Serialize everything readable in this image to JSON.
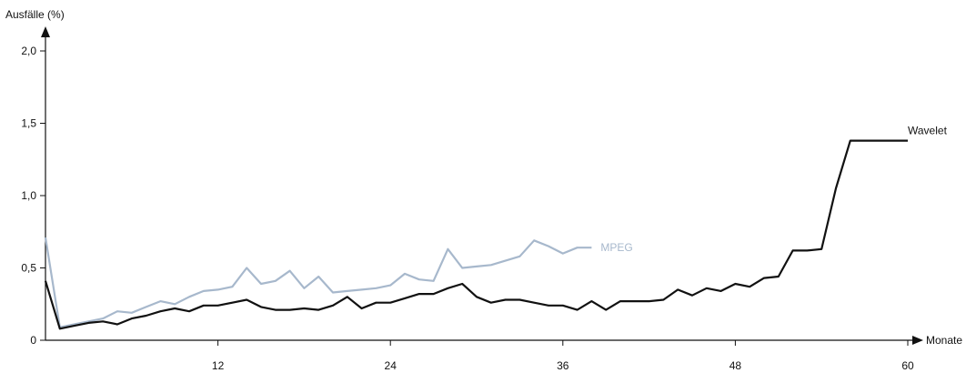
{
  "chart_data": {
    "type": "line",
    "ylabel": "Ausfälle (%)",
    "xlabel": "Monate",
    "xlim": [
      0,
      60
    ],
    "ylim": [
      0,
      2.0
    ],
    "x_ticks": [
      12,
      24,
      36,
      48,
      60
    ],
    "x_tick_labels": [
      "12",
      "24",
      "36",
      "48",
      "60"
    ],
    "y_ticks": [
      0,
      0.5,
      1.0,
      1.5,
      2.0
    ],
    "y_tick_labels": [
      "0",
      "0,5",
      "1,0",
      "1,5",
      "2,0"
    ],
    "grid": false,
    "series": [
      {
        "name": "MPEG",
        "color": "#a7b8cc",
        "label_position": "end",
        "x": [
          0,
          1,
          2,
          3,
          4,
          5,
          6,
          7,
          8,
          9,
          10,
          11,
          12,
          13,
          14,
          15,
          16,
          17,
          18,
          19,
          20,
          21,
          22,
          23,
          24,
          25,
          26,
          27,
          28,
          29,
          30,
          31,
          32,
          33,
          34,
          35,
          36,
          37,
          38
        ],
        "values": [
          0.71,
          0.09,
          0.11,
          0.13,
          0.15,
          0.2,
          0.19,
          0.23,
          0.27,
          0.25,
          0.3,
          0.34,
          0.35,
          0.37,
          0.5,
          0.39,
          0.41,
          0.48,
          0.36,
          0.44,
          0.33,
          0.34,
          0.35,
          0.36,
          0.38,
          0.46,
          0.42,
          0.41,
          0.63,
          0.5,
          0.51,
          0.52,
          0.55,
          0.58,
          0.69,
          0.65,
          0.6,
          0.64,
          0.64
        ]
      },
      {
        "name": "Wavelet",
        "color": "#111111",
        "label_position": "end",
        "x": [
          0,
          1,
          2,
          3,
          4,
          5,
          6,
          7,
          8,
          9,
          10,
          11,
          12,
          13,
          14,
          15,
          16,
          17,
          18,
          19,
          20,
          21,
          22,
          23,
          24,
          25,
          26,
          27,
          28,
          29,
          30,
          31,
          32,
          33,
          34,
          35,
          36,
          37,
          38,
          39,
          40,
          41,
          42,
          43,
          44,
          45,
          46,
          47,
          48,
          49,
          50,
          51,
          52,
          53,
          54,
          55,
          56,
          57,
          58,
          59,
          60
        ],
        "values": [
          0.41,
          0.08,
          0.1,
          0.12,
          0.13,
          0.11,
          0.15,
          0.17,
          0.2,
          0.22,
          0.2,
          0.24,
          0.24,
          0.26,
          0.28,
          0.23,
          0.21,
          0.21,
          0.22,
          0.21,
          0.24,
          0.3,
          0.22,
          0.26,
          0.26,
          0.29,
          0.32,
          0.32,
          0.36,
          0.39,
          0.3,
          0.26,
          0.28,
          0.28,
          0.26,
          0.24,
          0.24,
          0.21,
          0.27,
          0.21,
          0.27,
          0.27,
          0.27,
          0.28,
          0.35,
          0.31,
          0.36,
          0.34,
          0.39,
          0.37,
          0.43,
          0.44,
          0.62,
          0.62,
          0.63,
          1.05,
          1.38,
          1.38,
          1.38,
          1.38,
          1.38
        ]
      }
    ]
  }
}
